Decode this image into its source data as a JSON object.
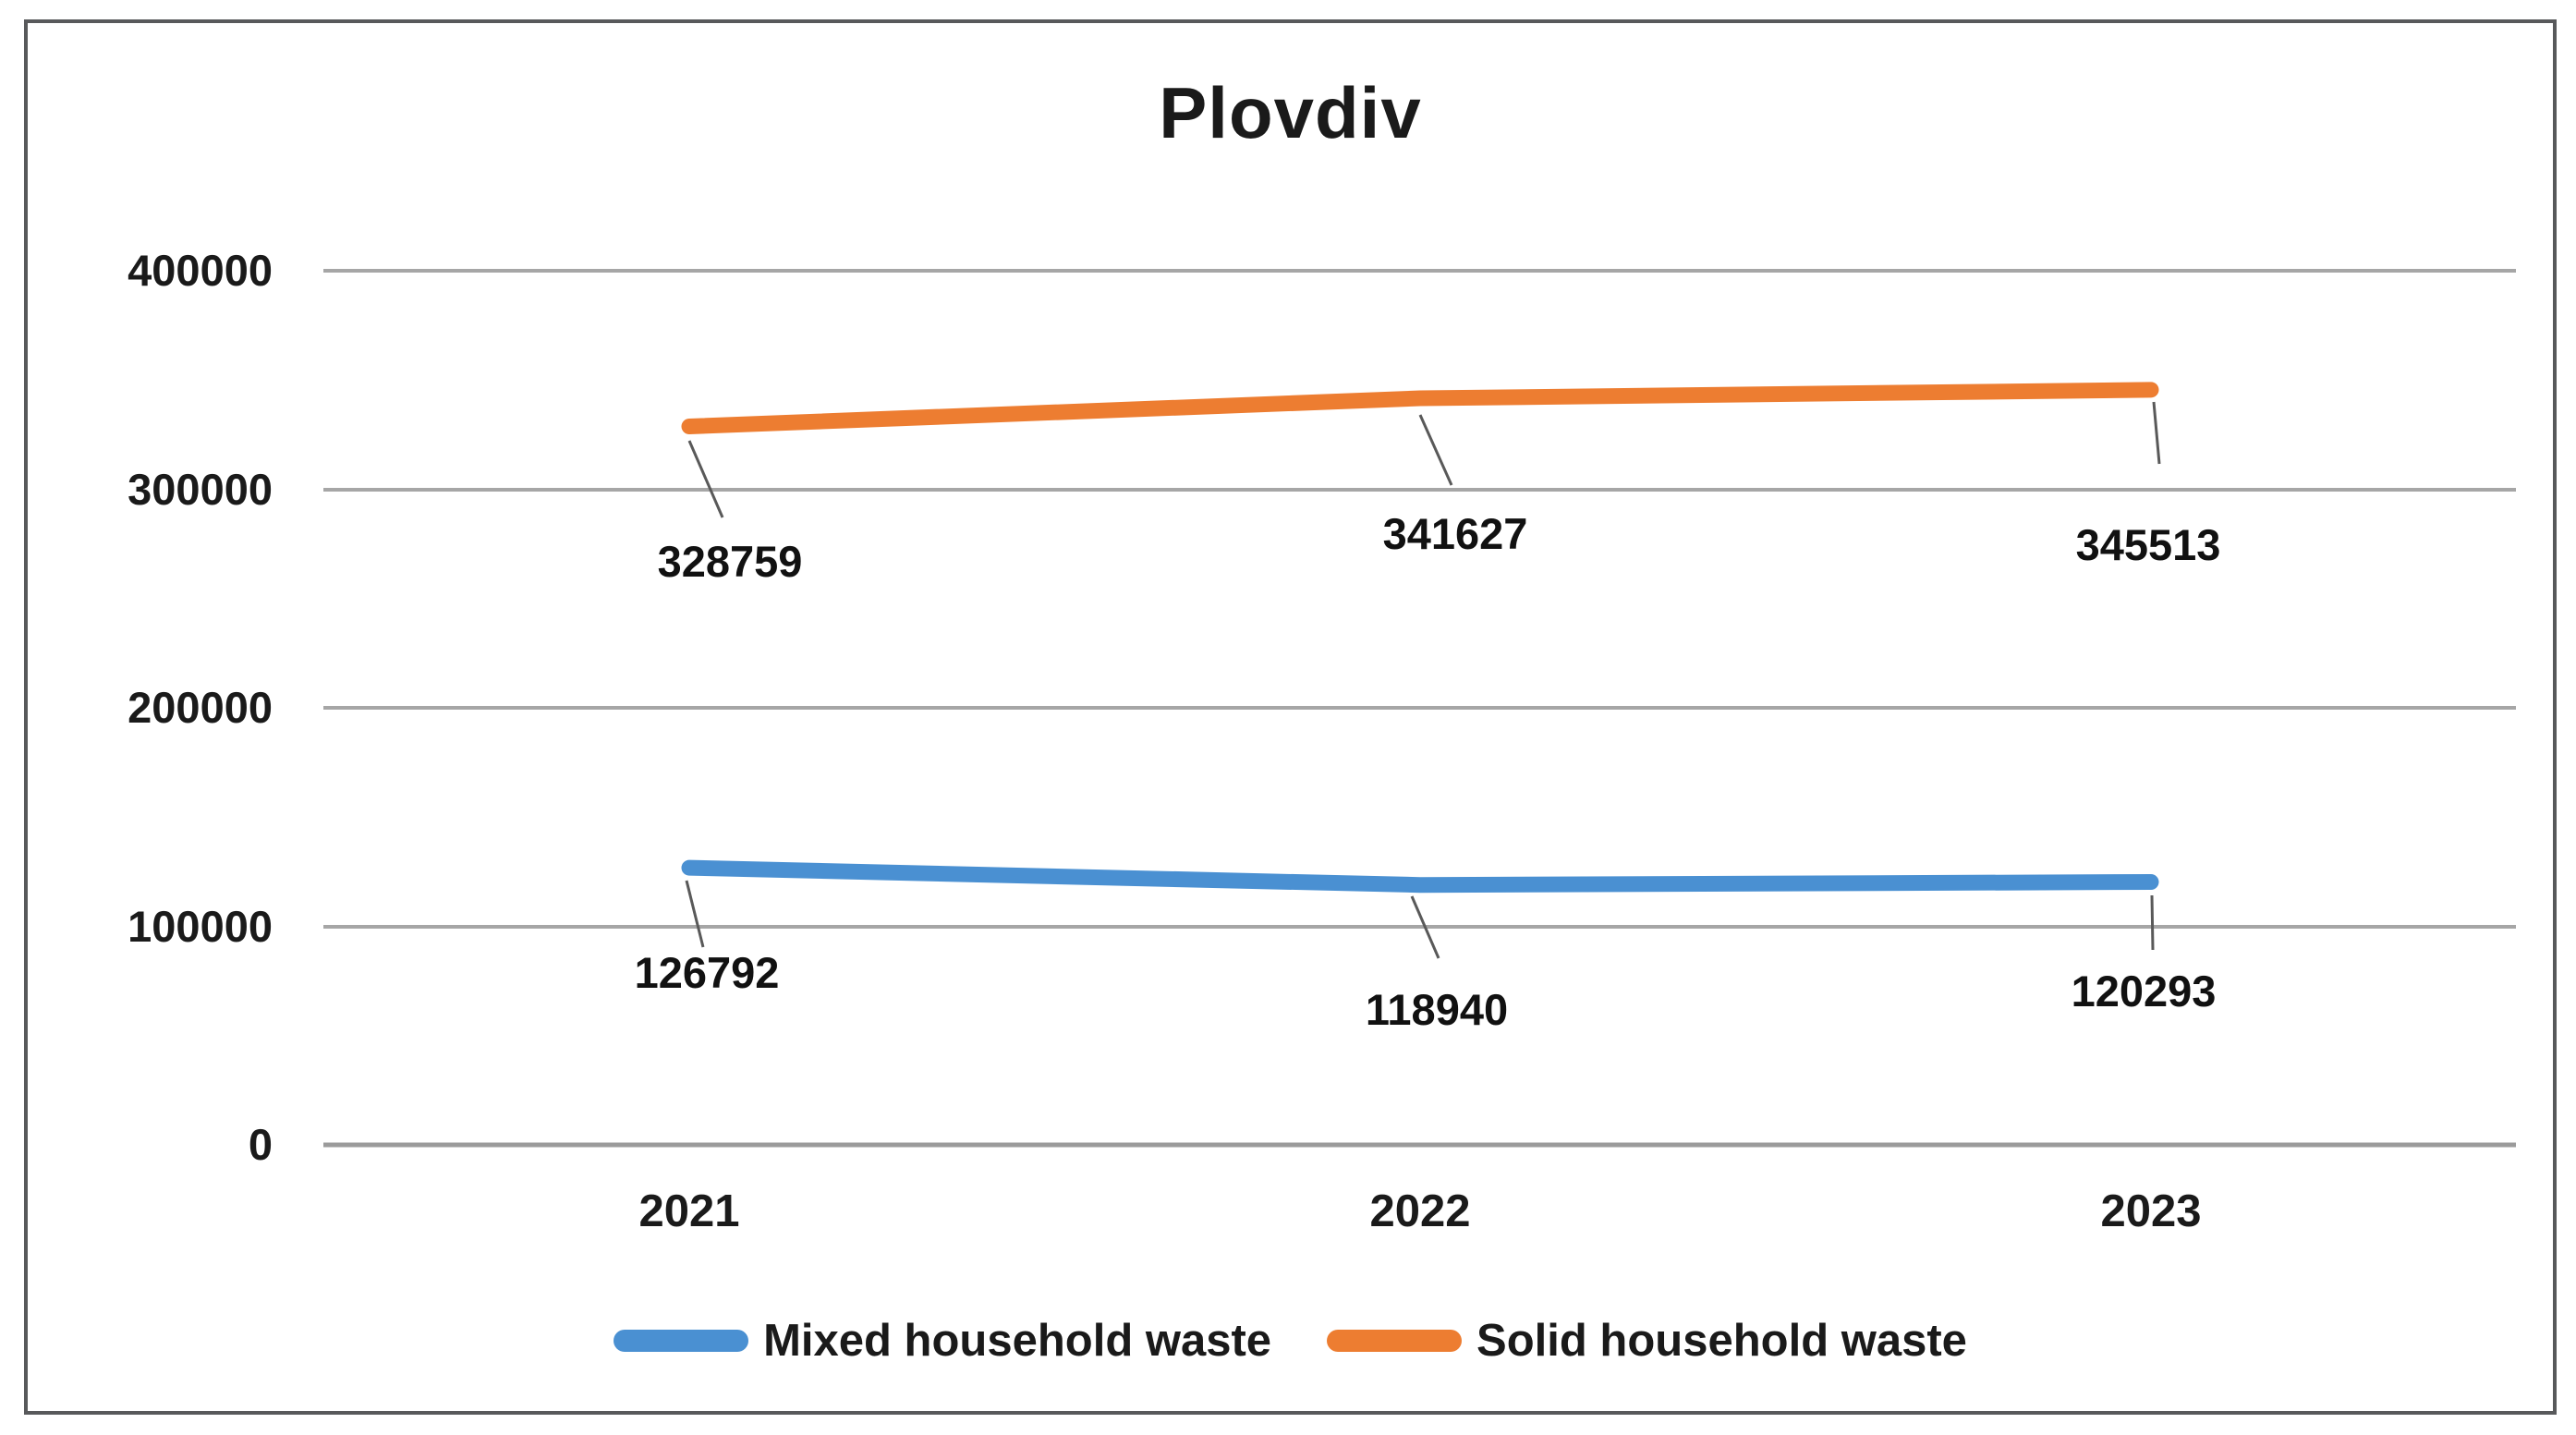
{
  "title": "Plovdiv",
  "chart_data": {
    "type": "line",
    "title": "Plovdiv",
    "categories": [
      "2021",
      "2022",
      "2023"
    ],
    "series": [
      {
        "name": "Mixed household waste",
        "color": "#4A90D2",
        "values": [
          126792,
          118940,
          120293
        ]
      },
      {
        "name": "Solid household waste",
        "color": "#ED7D31",
        "values": [
          328759,
          341627,
          345513
        ]
      }
    ],
    "yticks": [
      "400000",
      "300000",
      "200000",
      "100000",
      "0"
    ],
    "ylim": [
      0,
      400000
    ],
    "xlabel": "",
    "ylabel": "",
    "grid": "horizontal gridlines only",
    "legend_position": "bottom",
    "data_labels": "shown below points with leader lines"
  },
  "colors": {
    "gridline": "#A6A6A6",
    "axis_line": "#9B9B9B",
    "frame_border": "#58595B",
    "leader_line": "#595959",
    "text": "#1a1a1a"
  }
}
